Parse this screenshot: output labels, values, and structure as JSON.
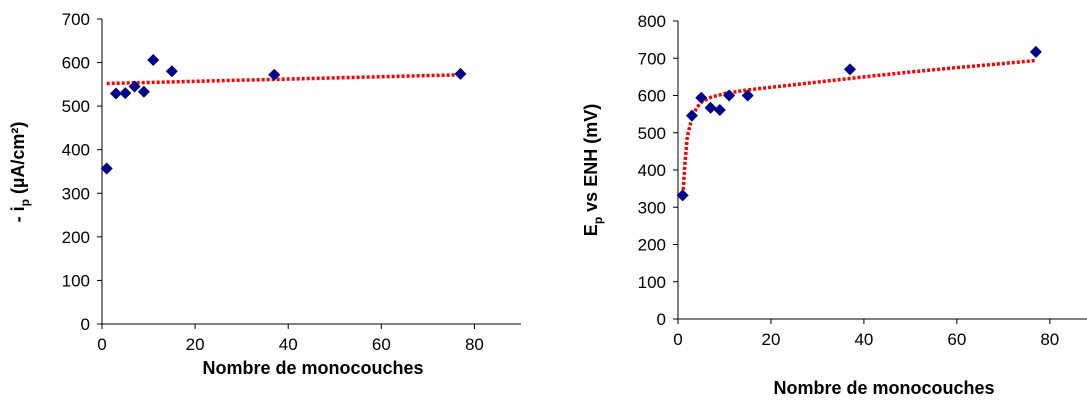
{
  "chart_data": [
    {
      "type": "scatter",
      "xlabel": "Nombre de monocouches",
      "ylabel_main": "- i",
      "ylabel_sub": "p",
      "ylabel_rest": " (µA/cm²)",
      "xlim": [
        0,
        90
      ],
      "ylim": [
        0,
        700
      ],
      "xticks": [
        "0",
        "20",
        "40",
        "60",
        "80"
      ],
      "yticks": [
        "0",
        "100",
        "200",
        "300",
        "400",
        "500",
        "600",
        "700"
      ],
      "grid": false,
      "points": [
        {
          "x": 1,
          "y": 357
        },
        {
          "x": 3,
          "y": 529
        },
        {
          "x": 5,
          "y": 530
        },
        {
          "x": 7,
          "y": 545
        },
        {
          "x": 9,
          "y": 533
        },
        {
          "x": 11,
          "y": 606
        },
        {
          "x": 15,
          "y": 580
        },
        {
          "x": 37,
          "y": 572
        },
        {
          "x": 77,
          "y": 574
        }
      ],
      "trendline": {
        "type": "linear",
        "points": [
          {
            "x": 1,
            "y": 552
          },
          {
            "x": 77,
            "y": 572
          }
        ]
      },
      "colors": {
        "marker": "#00008B",
        "trendline": "#FF0000"
      }
    },
    {
      "type": "scatter",
      "xlabel": "Nombre de monocouches",
      "ylabel_main": "E",
      "ylabel_sub": "p",
      "ylabel_rest": " vs ENH (mV)",
      "xlim": [
        0,
        88
      ],
      "ylim": [
        0,
        800
      ],
      "xticks": [
        "0",
        "20",
        "40",
        "60",
        "80"
      ],
      "yticks": [
        "0",
        "100",
        "200",
        "300",
        "400",
        "500",
        "600",
        "700",
        "800"
      ],
      "grid": false,
      "points": [
        {
          "x": 1,
          "y": 332
        },
        {
          "x": 3,
          "y": 546
        },
        {
          "x": 5,
          "y": 594
        },
        {
          "x": 7,
          "y": 567
        },
        {
          "x": 9,
          "y": 561
        },
        {
          "x": 11,
          "y": 600
        },
        {
          "x": 15,
          "y": 600
        },
        {
          "x": 37,
          "y": 670
        },
        {
          "x": 77,
          "y": 717
        }
      ],
      "trendline": {
        "type": "logarithmic",
        "points": [
          {
            "x": 1,
            "y": 320
          },
          {
            "x": 1.5,
            "y": 420
          },
          {
            "x": 2,
            "y": 490
          },
          {
            "x": 3,
            "y": 540
          },
          {
            "x": 4,
            "y": 567
          },
          {
            "x": 5,
            "y": 582
          },
          {
            "x": 7,
            "y": 595
          },
          {
            "x": 10,
            "y": 605
          },
          {
            "x": 15,
            "y": 615
          },
          {
            "x": 20,
            "y": 622
          },
          {
            "x": 30,
            "y": 636
          },
          {
            "x": 40,
            "y": 650
          },
          {
            "x": 50,
            "y": 663
          },
          {
            "x": 60,
            "y": 675
          },
          {
            "x": 70,
            "y": 686
          },
          {
            "x": 77,
            "y": 694
          }
        ]
      },
      "colors": {
        "marker": "#00008B",
        "trendline": "#FF0000"
      }
    }
  ]
}
